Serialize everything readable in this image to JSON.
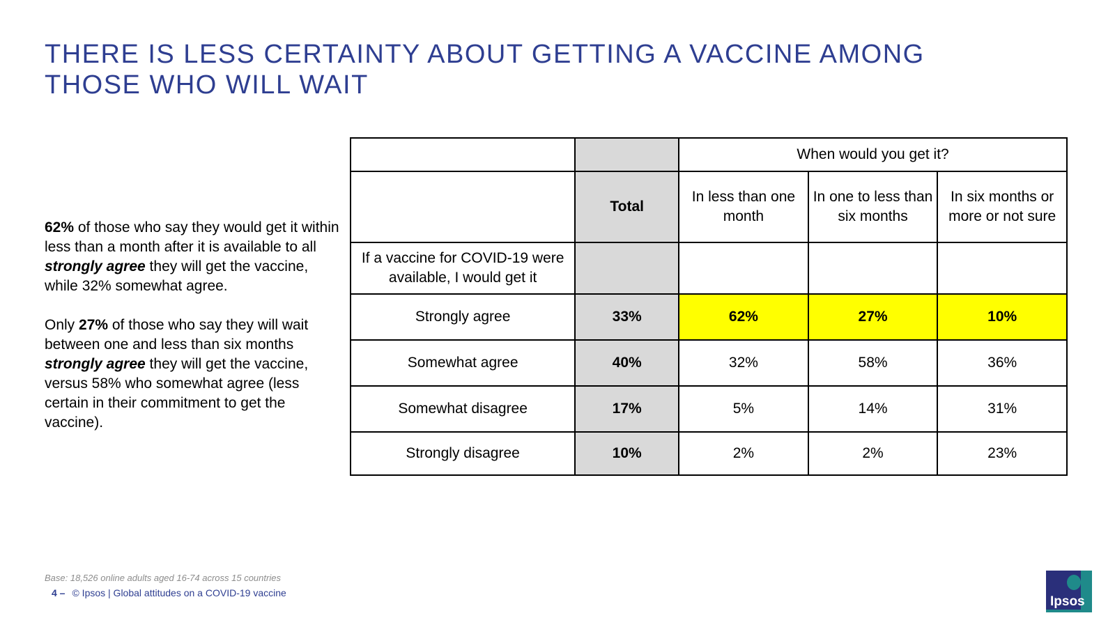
{
  "title": {
    "line1": "THERE IS LESS CERTAINTY ABOUT GETTING A VACCINE AMONG",
    "line2": "THOSE WHO WILL WAIT"
  },
  "commentary": {
    "p1": {
      "a": "62%",
      "b": " of those who say they would get it within less than a month after it is available to all ",
      "c": "strongly agree",
      "d": " they will get the vaccine, while 32% somewhat agree."
    },
    "p2": {
      "a": "Only ",
      "b": "27%",
      "c": " of those who say they will wait between one and less than six months ",
      "d": "strongly agree",
      "e": " they will get the vaccine, versus 58% who somewhat agree (less certain in their commitment to get the vaccine)."
    }
  },
  "table": {
    "group_header": "When would you get it?",
    "total_header": "Total",
    "col_headers": [
      "In less than one month",
      "In one to less than six months",
      "In six months or more or not sure"
    ],
    "question": "If a vaccine for COVID-19 were available, I would get it",
    "rows": [
      {
        "label": "Strongly agree",
        "total": "33%",
        "values": [
          "62%",
          "27%",
          "10%"
        ]
      },
      {
        "label": "Somewhat agree",
        "total": "40%",
        "values": [
          "32%",
          "58%",
          "36%"
        ]
      },
      {
        "label": "Somewhat disagree",
        "total": "17%",
        "values": [
          "5%",
          "14%",
          "31%"
        ]
      },
      {
        "label": "Strongly disagree",
        "total": "10%",
        "values": [
          "2%",
          "2%",
          "23%"
        ]
      }
    ]
  },
  "footer": {
    "base": "Base: 18,526 online adults aged 16-74 across 15 countries",
    "page_number": "4 –",
    "source": "© Ipsos | Global attitudes on a COVID-19 vaccine"
  },
  "logo": {
    "text": "Ipsos"
  },
  "colors": {
    "title": "#2e3e91",
    "highlight": "#ffff00",
    "total_bg": "#d9d9d9",
    "logo_bg": "#1f8a8a"
  }
}
